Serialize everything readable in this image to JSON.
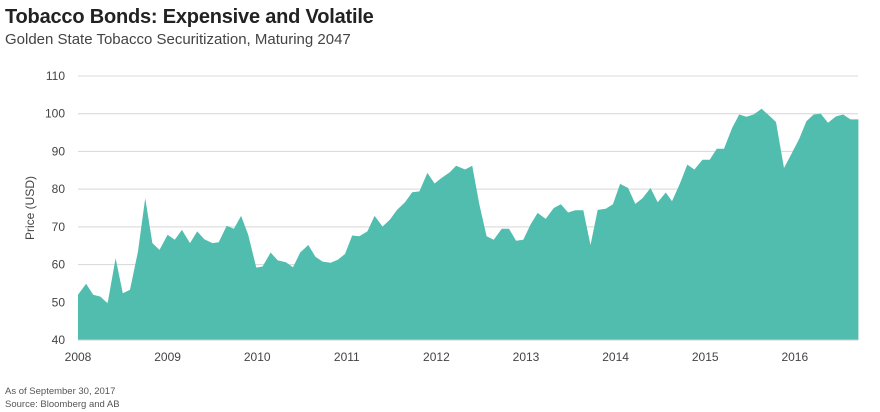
{
  "title": "Tobacco Bonds: Expensive and Volatile",
  "subtitle": "Golden State Tobacco Securitization, Maturing 2047",
  "footnotes": [
    "As of September 30, 2017",
    "Source: Bloomberg and AB"
  ],
  "chart_data": {
    "type": "area",
    "title": "Tobacco Bonds: Expensive and Volatile",
    "xlabel": "",
    "ylabel": "Price (USD)",
    "ylim": [
      40,
      110
    ],
    "yticks": [
      40,
      50,
      60,
      70,
      80,
      90,
      100,
      110
    ],
    "xlim": [
      2008,
      2016.71
    ],
    "xticks": [
      2008,
      2009,
      2010,
      2011,
      2012,
      2013,
      2014,
      2015,
      2016
    ],
    "grid": true,
    "color": "#50bdae",
    "series": [
      {
        "name": "Golden State Tobacco Securitization 2047",
        "x": [
          2008.0,
          2008.09,
          2008.17,
          2008.25,
          2008.33,
          2008.42,
          2008.5,
          2008.58,
          2008.67,
          2008.75,
          2008.83,
          2008.91,
          2009.0,
          2009.08,
          2009.16,
          2009.25,
          2009.33,
          2009.41,
          2009.5,
          2009.57,
          2009.66,
          2009.74,
          2009.82,
          2009.9,
          2009.99,
          2010.06,
          2010.15,
          2010.23,
          2010.32,
          2010.4,
          2010.48,
          2010.57,
          2010.65,
          2010.73,
          2010.82,
          2010.9,
          2010.98,
          2011.06,
          2011.14,
          2011.23,
          2011.31,
          2011.4,
          2011.48,
          2011.56,
          2011.65,
          2011.73,
          2011.81,
          2011.9,
          2011.98,
          2012.06,
          2012.15,
          2012.22,
          2012.32,
          2012.4,
          2012.48,
          2012.56,
          2012.64,
          2012.73,
          2012.81,
          2012.89,
          2012.97,
          2013.05,
          2013.13,
          2013.22,
          2013.31,
          2013.39,
          2013.47,
          2013.55,
          2013.64,
          2013.72,
          2013.8,
          2013.89,
          2013.97,
          2014.05,
          2014.14,
          2014.22,
          2014.3,
          2014.39,
          2014.47,
          2014.56,
          2014.63,
          2014.72,
          2014.8,
          2014.88,
          2014.97,
          2015.05,
          2015.13,
          2015.21,
          2015.3,
          2015.38,
          2015.46,
          2015.54,
          2015.63,
          2015.71,
          2015.79,
          2015.88,
          2015.96,
          2016.05,
          2016.13,
          2016.21,
          2016.29,
          2016.37,
          2016.46,
          2016.54,
          2016.62,
          2016.71
        ],
        "values": [
          52.0,
          54.9,
          52.0,
          51.5,
          49.7,
          61.7,
          52.4,
          53.3,
          63.5,
          77.6,
          65.7,
          63.9,
          67.9,
          66.6,
          69.2,
          65.7,
          68.8,
          66.7,
          65.7,
          65.9,
          70.3,
          69.5,
          72.9,
          67.9,
          59.2,
          59.5,
          63.2,
          61.1,
          60.6,
          59.3,
          63.2,
          65.2,
          62.1,
          60.8,
          60.5,
          61.3,
          62.8,
          67.7,
          67.5,
          68.8,
          72.9,
          70.1,
          71.9,
          74.5,
          76.5,
          79.2,
          79.4,
          84.3,
          81.5,
          83.0,
          84.5,
          86.2,
          85.2,
          86.2,
          75.9,
          67.5,
          66.6,
          69.5,
          69.5,
          66.3,
          66.6,
          70.6,
          73.7,
          72.1,
          75.0,
          76.0,
          73.8,
          74.4,
          74.4,
          65.2,
          74.5,
          74.8,
          76.0,
          81.4,
          80.3,
          76.1,
          77.6,
          80.3,
          76.5,
          79.1,
          76.8,
          81.6,
          86.5,
          85.2,
          87.8,
          87.8,
          90.7,
          90.7,
          96.2,
          99.8,
          99.2,
          99.8,
          101.3,
          99.6,
          97.8,
          85.6,
          89.2,
          93.4,
          98.0,
          99.8,
          100.0,
          97.6,
          99.3,
          99.8,
          98.5,
          98.5
        ]
      }
    ]
  }
}
